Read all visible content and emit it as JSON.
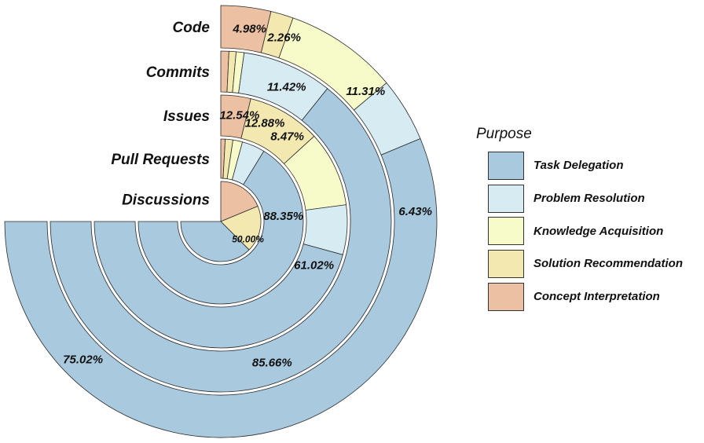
{
  "chart_data": {
    "type": "pie",
    "subtype": "nested-ring (radial) chart",
    "legend_title": "Purpose",
    "legend_position": "right",
    "categories": [
      "Task Delegation",
      "Problem Resolution",
      "Knowledge Acquisition",
      "Solution Recommendation",
      "Concept Interpretation"
    ],
    "colors": [
      "#a9c9de",
      "#d6ecf2",
      "#f7fbc9",
      "#f2e8b0",
      "#ecc0a2"
    ],
    "rings": [
      {
        "name": "Code",
        "values": [
          75.02,
          6.43,
          11.31,
          2.26,
          4.98
        ],
        "labels": [
          "75.02%",
          "6.43%",
          "11.31%",
          "2.26%",
          "4.98%"
        ]
      },
      {
        "name": "Commits",
        "values": [
          85.66,
          11.42,
          1.0,
          0.9,
          1.02
        ],
        "labels": [
          "85.66%",
          "11.42%",
          "",
          "",
          ""
        ]
      },
      {
        "name": "Issues",
        "values": [
          61.02,
          8.47,
          12.88,
          12.54,
          5.09
        ],
        "labels": [
          "61.02%",
          "8.47%",
          "12.88%",
          "12.54%",
          ""
        ]
      },
      {
        "name": "Pull Requests",
        "values": [
          88.35,
          6.0,
          2.5,
          2.0,
          1.15
        ],
        "labels": [
          "88.35%",
          "",
          "",
          "",
          ""
        ]
      },
      {
        "name": "Discussions",
        "values": [
          50.0,
          0.0,
          0.0,
          25.0,
          25.0
        ],
        "labels": [
          "50.00%",
          "",
          "",
          "",
          ""
        ]
      }
    ]
  }
}
